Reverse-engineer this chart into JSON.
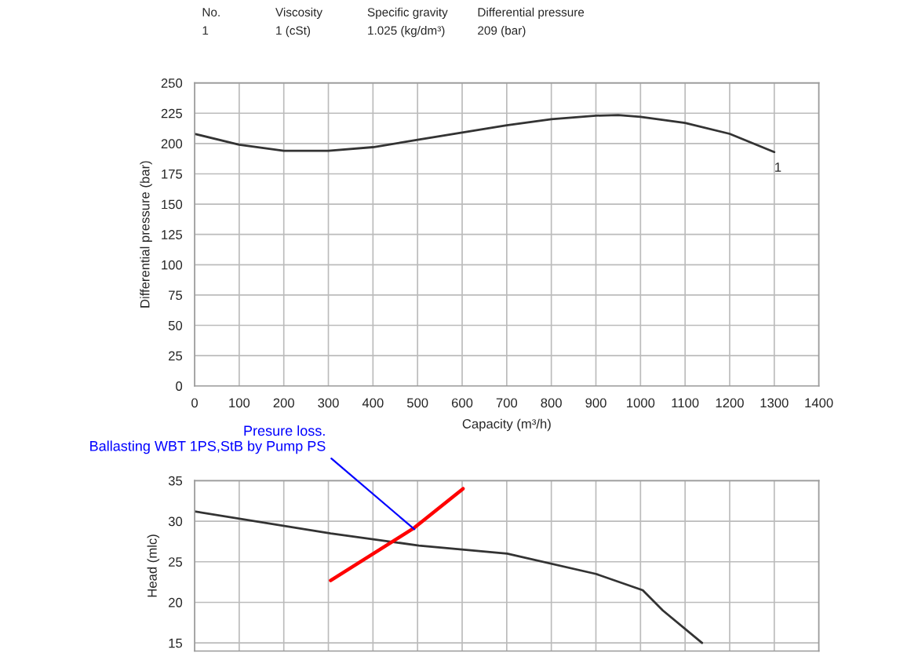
{
  "chart_data": [
    {
      "type": "line",
      "xlabel": "Capacity (m³/h)",
      "ylabel": "Differential pressure (bar)",
      "x": [
        0,
        100,
        200,
        300,
        400,
        500,
        600,
        700,
        800,
        900,
        950,
        1000,
        1100,
        1200,
        1300
      ],
      "series": [
        {
          "color": "#333333",
          "values": [
            208,
            199,
            194,
            194,
            197,
            203,
            209,
            215,
            220,
            223,
            223.5,
            222,
            217,
            208,
            193
          ]
        }
      ],
      "xlim": [
        0,
        1400
      ],
      "xticks": [
        0,
        100,
        200,
        300,
        400,
        500,
        600,
        700,
        800,
        900,
        1000,
        1100,
        1200,
        1300,
        1400
      ],
      "ylim": [
        0,
        250
      ],
      "yticks": [
        0,
        25,
        50,
        75,
        100,
        125,
        150,
        175,
        200,
        225,
        250
      ],
      "grid": true,
      "marker": "none",
      "line_style": "solid",
      "annotations": [
        "No.",
        "Viscosity",
        "Specific gravity",
        "Differential pressure",
        "1",
        "1 (cSt)",
        "1.025 (kg/dm³)",
        "209 (bar)",
        {
          "text": "1",
          "x": 1300,
          "y": 193
        }
      ]
    },
    {
      "type": "line",
      "ylabel": "Head (mlc)",
      "series": [
        {
          "color": "#333333",
          "x": [
            0,
            305,
            503,
            701,
            900,
            1005,
            1050,
            1138
          ],
          "values": [
            31.2,
            28.5,
            27,
            26,
            23.5,
            21.5,
            19,
            15
          ]
        },
        {
          "color": "#ff0000",
          "x": [
            305,
            493,
            602
          ],
          "values": [
            22.7,
            29.2,
            34
          ]
        }
      ],
      "xlim": [
        0,
        1400
      ],
      "xticks": [
        {
          "value": 0,
          "label": null
        },
        {
          "value": 100,
          "label": null
        },
        {
          "value": 200,
          "label": null
        },
        {
          "value": 300,
          "label": null
        },
        {
          "value": 400,
          "label": null
        },
        {
          "value": 500,
          "label": null
        },
        {
          "value": 600,
          "label": null
        },
        {
          "value": 700,
          "label": null
        },
        {
          "value": 800,
          "label": null
        },
        {
          "value": 900,
          "label": null
        },
        {
          "value": 1000,
          "label": null
        },
        {
          "value": 1100,
          "label": null
        },
        {
          "value": 1200,
          "label": null
        },
        {
          "value": 1300,
          "label": null
        },
        {
          "value": 1400,
          "label": null
        }
      ],
      "ylim": [
        14,
        35
      ],
      "yticks": [
        15,
        20,
        25,
        30,
        35
      ],
      "grid": true,
      "marker": "none",
      "line_style": "solid",
      "tick_labels": "y",
      "annotations": [
        {
          "text": "Presure loss.\nBallasting WBT 1PS,StB by Pump PS",
          "x": 493,
          "y": 29
        }
      ]
    }
  ]
}
